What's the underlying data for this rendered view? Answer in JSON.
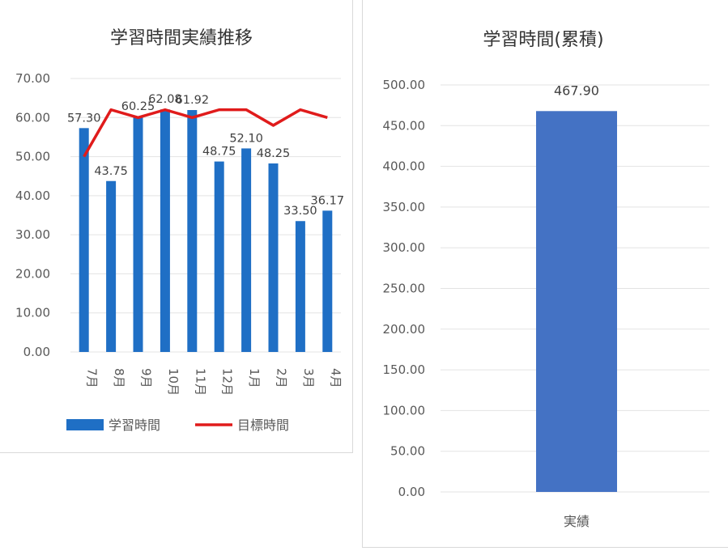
{
  "colors": {
    "bar_monthly": "#1f6fc5",
    "line_target": "#e01b1b",
    "bar_cumulative": "#4472c4",
    "grid": "#e3e3e3",
    "tick_text": "#595959"
  },
  "chart_data": [
    {
      "type": "bar",
      "title": "学習時間実績推移",
      "categories": [
        "7月",
        "8月",
        "9月",
        "10月",
        "11月",
        "12月",
        "1月",
        "2月",
        "3月",
        "4月"
      ],
      "y_ticks": [
        "0.00",
        "10.00",
        "20.00",
        "30.00",
        "40.00",
        "50.00",
        "60.00",
        "70.00"
      ],
      "ylim": [
        0,
        70
      ],
      "grid": true,
      "legend_position": "bottom",
      "series": [
        {
          "name": "学習時間",
          "kind": "bar",
          "values": [
            57.3,
            43.75,
            60.25,
            62.08,
            61.92,
            48.75,
            52.1,
            48.25,
            33.5,
            36.17
          ],
          "labels": [
            "57.30",
            "43.75",
            "60.25",
            "62.08",
            "61.92",
            "48.75",
            "52.10",
            "48.25",
            "33.50",
            "36.17"
          ]
        },
        {
          "name": "目標時間",
          "kind": "line",
          "values": [
            50,
            62,
            60,
            62,
            60,
            62,
            62,
            58,
            62,
            60
          ]
        }
      ]
    },
    {
      "type": "bar",
      "title": "学習時間(累積)",
      "categories": [
        "実績"
      ],
      "y_ticks": [
        "0.00",
        "50.00",
        "100.00",
        "150.00",
        "200.00",
        "250.00",
        "300.00",
        "350.00",
        "400.00",
        "450.00",
        "500.00"
      ],
      "ylim": [
        0,
        500
      ],
      "grid": true,
      "series": [
        {
          "name": "",
          "kind": "bar",
          "values": [
            467.9
          ],
          "labels": [
            "467.90"
          ]
        }
      ]
    }
  ]
}
